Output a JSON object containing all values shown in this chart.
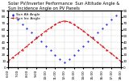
{
  "title": "Solar PV/Inverter Performance  Sun Altitude Angle & Sun Incidence Angle on PV Panels",
  "legend_labels": [
    "Sun Alt Angle",
    "Sun Inc Angle"
  ],
  "x_values": [
    6,
    6.5,
    7,
    7.5,
    8,
    8.5,
    9,
    9.5,
    10,
    10.5,
    11,
    11.5,
    12,
    12.5,
    13,
    13.5,
    14,
    14.5,
    15,
    15.5,
    16,
    16.5,
    17,
    17.5,
    18
  ],
  "sun_altitude": [
    90,
    83,
    76,
    69,
    62,
    55,
    48,
    41,
    34,
    27,
    20,
    13,
    8,
    13,
    20,
    27,
    34,
    41,
    48,
    55,
    62,
    69,
    76,
    83,
    90
  ],
  "sun_incidence": [
    10,
    16,
    22,
    28,
    34,
    40,
    46,
    52,
    58,
    63,
    68,
    72,
    74,
    72,
    68,
    63,
    58,
    52,
    46,
    40,
    34,
    28,
    22,
    16,
    10
  ],
  "xlim": [
    6,
    18
  ],
  "ylim": [
    0,
    90
  ],
  "y_ticks": [
    0,
    10,
    20,
    30,
    40,
    50,
    60,
    70,
    80,
    90
  ],
  "x_ticks": [
    6,
    7,
    8,
    9,
    10,
    11,
    12,
    13,
    14,
    15,
    16,
    17,
    18
  ],
  "blue_color": "#0000dd",
  "red_color": "#dd0000",
  "bg_color": "#ffffff",
  "grid_color": "#888888",
  "title_fontsize": 3.8,
  "legend_fontsize": 3.2,
  "tick_fontsize": 3.0,
  "linewidth": 0.7,
  "markersize": 1.0
}
